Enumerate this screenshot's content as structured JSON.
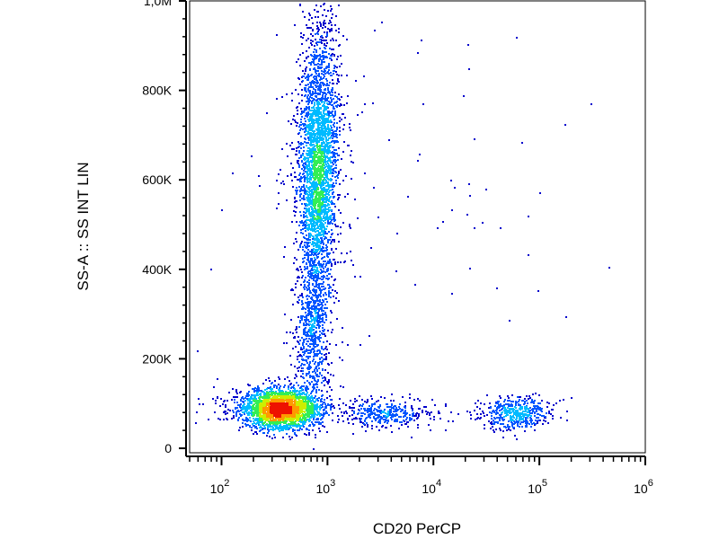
{
  "chart_data": {
    "type": "scatter",
    "subtype": "flow-cytometry-density-dot-plot",
    "xlabel": "CD20 PerCP",
    "ylabel": "SS-A :: SS INT LIN",
    "x_scale": "log",
    "y_scale": "linear",
    "xlim": [
      50,
      1000000
    ],
    "ylim": [
      -10000,
      1000000
    ],
    "x_ticks": [
      {
        "value": 100,
        "base": "10",
        "exp": "2"
      },
      {
        "value": 1000,
        "base": "10",
        "exp": "3"
      },
      {
        "value": 10000,
        "base": "10",
        "exp": "4"
      },
      {
        "value": 100000,
        "base": "10",
        "exp": "5"
      },
      {
        "value": 1000000,
        "base": "10",
        "exp": "6"
      }
    ],
    "y_ticks": [
      {
        "value": 0,
        "label": "0"
      },
      {
        "value": 200000,
        "label": "200K"
      },
      {
        "value": 400000,
        "label": "400K"
      },
      {
        "value": 600000,
        "label": "600K"
      },
      {
        "value": 800000,
        "label": "800K"
      },
      {
        "value": 1000000,
        "label": "1,0M"
      }
    ],
    "grid": false,
    "legend": "none",
    "color_scale": [
      "#0000cc",
      "#0055ff",
      "#00bbff",
      "#33ee55",
      "#ccee00",
      "#ff9900",
      "#ee1100"
    ],
    "populations": [
      {
        "x_center": 350,
        "x_log_sd": 0.18,
        "y_center": 90000,
        "y_sd": 22000,
        "events": 2600,
        "tilt": 0,
        "peak_density": "high"
      },
      {
        "x_center": 800,
        "x_log_sd": 0.09,
        "y_center": 620000,
        "y_sd": 160000,
        "events": 3200,
        "tilt": 0.2,
        "peak_density": "high"
      },
      {
        "x_center": 700,
        "x_log_sd": 0.08,
        "y_center": 250000,
        "y_sd": 90000,
        "events": 600,
        "tilt": 0,
        "peak_density": "low"
      },
      {
        "x_center": 3500,
        "x_log_sd": 0.22,
        "y_center": 80000,
        "y_sd": 15000,
        "events": 380,
        "tilt": 0,
        "peak_density": "low"
      },
      {
        "x_center": 60000,
        "x_log_sd": 0.16,
        "y_center": 80000,
        "y_sd": 18000,
        "events": 480,
        "tilt": 0.3,
        "peak_density": "medium"
      },
      {
        "x_center": 8000,
        "x_log_sd": 0.9,
        "y_center": 500000,
        "y_sd": 260000,
        "events": 70,
        "tilt": 0,
        "peak_density": "sparse"
      }
    ]
  }
}
